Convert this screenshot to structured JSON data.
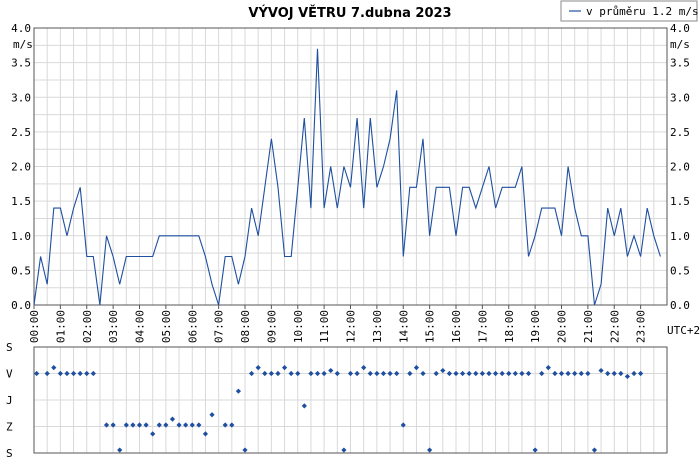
{
  "chart_data": [
    {
      "type": "line",
      "title": "VÝVOJ VĚTRU  7.dubna 2023",
      "ylabel": "m/s",
      "xlabel": "UTC+2",
      "ylim": [
        0,
        4
      ],
      "yticks": [
        "0.0",
        "0.5",
        "1.0",
        "1.5",
        "2.0",
        "2.5",
        "3.0",
        "3.5",
        "4.0"
      ],
      "xticks": [
        "00:00",
        "01:00",
        "02:00",
        "03:00",
        "04:00",
        "05:00",
        "06:00",
        "07:00",
        "08:00",
        "09:00",
        "10:00",
        "11:00",
        "12:00",
        "13:00",
        "14:00",
        "15:00",
        "16:00",
        "17:00",
        "18:00",
        "19:00",
        "20:00",
        "21:00",
        "22:00",
        "23:00"
      ],
      "grid": true,
      "legend_position": "top-right",
      "series": [
        {
          "name": "v průměru 1.2 m/s",
          "color": "#1f4fa0",
          "x": [
            0,
            0.25,
            0.5,
            0.75,
            1.0,
            1.25,
            1.5,
            1.75,
            2.0,
            2.25,
            2.5,
            2.75,
            3.0,
            3.25,
            3.5,
            3.75,
            4.0,
            4.25,
            4.5,
            4.75,
            5.0,
            5.25,
            5.5,
            5.75,
            6.0,
            6.25,
            6.5,
            6.75,
            7.0,
            7.25,
            7.5,
            7.75,
            8.0,
            8.25,
            8.5,
            8.75,
            9.0,
            9.25,
            9.5,
            9.75,
            10.0,
            10.25,
            10.5,
            10.75,
            11.0,
            11.25,
            11.5,
            11.75,
            12.0,
            12.25,
            12.5,
            12.75,
            13.0,
            13.25,
            13.5,
            13.75,
            14.0,
            14.25,
            14.5,
            14.75,
            15.0,
            15.25,
            15.5,
            15.75,
            16.0,
            16.25,
            16.5,
            16.75,
            17.0,
            17.25,
            17.5,
            17.75,
            18.0,
            18.25,
            18.5,
            18.75,
            19.0,
            19.25,
            19.5,
            19.75,
            20.0,
            20.25,
            20.5,
            20.75,
            21.0,
            21.25,
            21.5,
            21.75,
            22.0,
            22.25,
            22.5,
            22.75,
            23.0,
            23.25,
            23.5,
            23.75
          ],
          "values": [
            0.0,
            0.7,
            0.3,
            1.4,
            1.4,
            1.0,
            1.4,
            1.7,
            0.7,
            0.7,
            0.0,
            1.0,
            0.7,
            0.3,
            0.7,
            0.7,
            0.7,
            0.7,
            0.7,
            1.0,
            1.0,
            1.0,
            1.0,
            1.0,
            1.0,
            1.0,
            0.7,
            0.3,
            0.0,
            0.7,
            0.7,
            0.3,
            0.7,
            1.4,
            1.0,
            1.7,
            2.4,
            1.7,
            0.7,
            0.7,
            1.7,
            2.7,
            1.4,
            3.7,
            1.4,
            2.0,
            1.4,
            2.0,
            1.7,
            2.7,
            1.4,
            2.7,
            1.7,
            2.0,
            2.4,
            3.1,
            0.7,
            1.7,
            1.7,
            2.4,
            1.0,
            1.7,
            1.7,
            1.7,
            1.0,
            1.7,
            1.7,
            1.4,
            1.7,
            2.0,
            1.4,
            1.7,
            1.7,
            1.7,
            2.0,
            0.7,
            1.0,
            1.4,
            1.4,
            1.4,
            1.0,
            2.0,
            1.4,
            1.0,
            1.0,
            0.0,
            0.3,
            1.4,
            1.0,
            1.4,
            0.7,
            1.0,
            0.7,
            1.4,
            1.0,
            0.7
          ]
        }
      ]
    },
    {
      "type": "scatter",
      "yticks": [
        "S",
        "V",
        "J",
        "Z",
        "S"
      ],
      "grid": true,
      "series": [
        {
          "color": "#1f4fa0",
          "points": [
            [
              0.1,
              90
            ],
            [
              0.5,
              90
            ],
            [
              0.75,
              70
            ],
            [
              1.0,
              90
            ],
            [
              1.25,
              90
            ],
            [
              1.5,
              90
            ],
            [
              1.75,
              90
            ],
            [
              2.0,
              90
            ],
            [
              2.25,
              90
            ],
            [
              2.75,
              265
            ],
            [
              3.0,
              265
            ],
            [
              3.25,
              350
            ],
            [
              3.5,
              265
            ],
            [
              3.75,
              265
            ],
            [
              4.0,
              265
            ],
            [
              4.25,
              265
            ],
            [
              4.5,
              295
            ],
            [
              4.75,
              265
            ],
            [
              5.0,
              265
            ],
            [
              5.25,
              245
            ],
            [
              5.5,
              265
            ],
            [
              5.75,
              265
            ],
            [
              6.0,
              265
            ],
            [
              6.25,
              265
            ],
            [
              6.5,
              295
            ],
            [
              6.75,
              230
            ],
            [
              7.25,
              265
            ],
            [
              7.5,
              265
            ],
            [
              7.75,
              150
            ],
            [
              8.0,
              350
            ],
            [
              8.25,
              90
            ],
            [
              8.5,
              70
            ],
            [
              8.75,
              90
            ],
            [
              9.0,
              90
            ],
            [
              9.25,
              90
            ],
            [
              9.5,
              70
            ],
            [
              9.75,
              90
            ],
            [
              10.0,
              90
            ],
            [
              10.25,
              200
            ],
            [
              10.5,
              90
            ],
            [
              10.75,
              90
            ],
            [
              11.0,
              90
            ],
            [
              11.25,
              80
            ],
            [
              11.5,
              90
            ],
            [
              11.75,
              350
            ],
            [
              12.0,
              90
            ],
            [
              12.25,
              90
            ],
            [
              12.5,
              70
            ],
            [
              12.75,
              90
            ],
            [
              13.0,
              90
            ],
            [
              13.25,
              90
            ],
            [
              13.5,
              90
            ],
            [
              13.75,
              90
            ],
            [
              14.0,
              265
            ],
            [
              14.25,
              90
            ],
            [
              14.5,
              70
            ],
            [
              14.75,
              90
            ],
            [
              15.0,
              350
            ],
            [
              15.25,
              90
            ],
            [
              15.5,
              80
            ],
            [
              15.75,
              90
            ],
            [
              16.0,
              90
            ],
            [
              16.25,
              90
            ],
            [
              16.5,
              90
            ],
            [
              16.75,
              90
            ],
            [
              17.0,
              90
            ],
            [
              17.25,
              90
            ],
            [
              17.5,
              90
            ],
            [
              17.75,
              90
            ],
            [
              18.0,
              90
            ],
            [
              18.25,
              90
            ],
            [
              18.5,
              90
            ],
            [
              18.75,
              90
            ],
            [
              19.0,
              350
            ],
            [
              19.25,
              90
            ],
            [
              19.5,
              70
            ],
            [
              19.75,
              90
            ],
            [
              20.0,
              90
            ],
            [
              20.25,
              90
            ],
            [
              20.5,
              90
            ],
            [
              20.75,
              90
            ],
            [
              21.0,
              90
            ],
            [
              21.25,
              350
            ],
            [
              21.5,
              80
            ],
            [
              21.75,
              90
            ],
            [
              22.0,
              90
            ],
            [
              22.25,
              90
            ],
            [
              22.5,
              100
            ],
            [
              22.75,
              90
            ],
            [
              23.0,
              90
            ]
          ]
        }
      ]
    }
  ]
}
